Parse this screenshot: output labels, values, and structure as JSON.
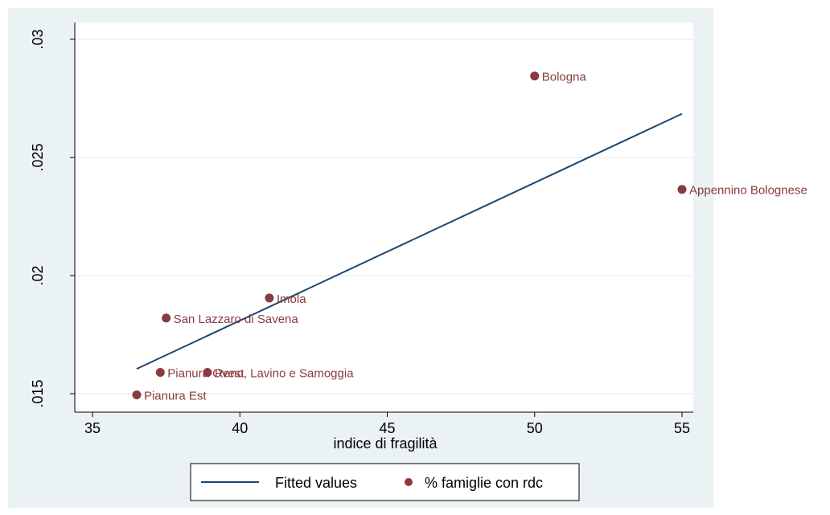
{
  "chart_data": {
    "type": "scatter",
    "title": "",
    "xlabel": "indice di fragilità",
    "ylabel": "",
    "xlim": [
      35,
      55.5
    ],
    "ylim": [
      0.015,
      0.03
    ],
    "xticks": [
      35,
      40,
      45,
      50,
      55
    ],
    "xtick_labels": [
      "35",
      "40",
      "45",
      "50",
      "55"
    ],
    "yticks": [
      0.015,
      0.02,
      0.025,
      0.03
    ],
    "ytick_labels": [
      ".015",
      ".02",
      ".025",
      ".03"
    ],
    "grid": "horizontal",
    "series": [
      {
        "name": "% famiglie con rdc",
        "kind": "scatter",
        "color": "#8b3a3e",
        "points": [
          {
            "x": 50.0,
            "y": 0.02845,
            "label": "Bologna"
          },
          {
            "x": 55.0,
            "y": 0.02365,
            "label": "Appennino Bolognese"
          },
          {
            "x": 41.0,
            "y": 0.01905,
            "label": "Imola"
          },
          {
            "x": 37.5,
            "y": 0.0182,
            "label": "San Lazzaro di Savena"
          },
          {
            "x": 38.9,
            "y": 0.0159,
            "label": "Reno, Lavino e Samoggia"
          },
          {
            "x": 37.3,
            "y": 0.0159,
            "label": "Pianura Ovest"
          },
          {
            "x": 36.5,
            "y": 0.01495,
            "label": "Pianura Est"
          }
        ]
      },
      {
        "name": "Fitted values",
        "kind": "line",
        "color": "#1a476f",
        "x": [
          36.5,
          55.0
        ],
        "y": [
          0.01605,
          0.02685
        ]
      }
    ],
    "legend": {
      "position": "bottom",
      "entries": [
        "Fitted values",
        "% famiglie con rdc"
      ]
    },
    "colors": {
      "outer_background": "#eaf2f3",
      "plot_background": "#ffffff",
      "grid": "#eaf2f3",
      "axis": "#000000",
      "point": "#8b3a3e",
      "line": "#1a476f"
    }
  }
}
